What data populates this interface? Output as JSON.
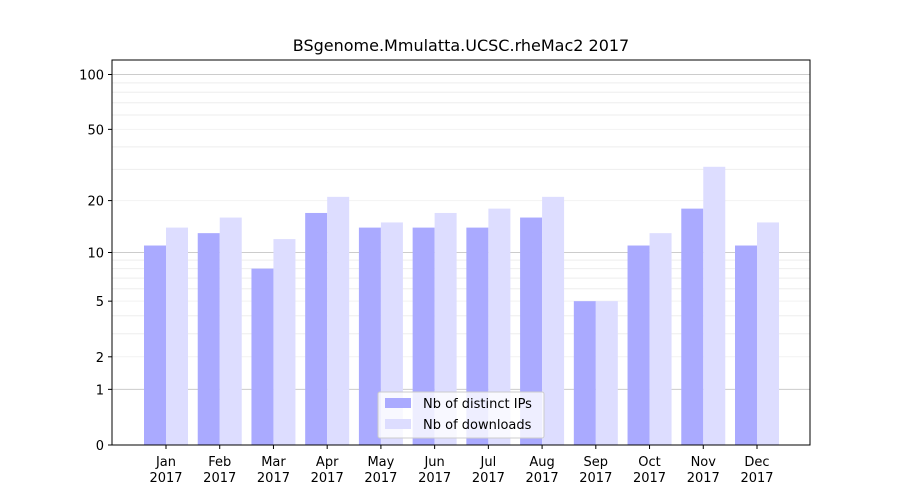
{
  "chart_data": {
    "type": "bar",
    "title": "BSgenome.Mmulatta.UCSC.rheMac2 2017",
    "xlabel": "",
    "ylabel": "",
    "yscale": "log(1+y)",
    "ylim": [
      0,
      120
    ],
    "yticks": [
      0,
      1,
      2,
      5,
      10,
      20,
      50,
      100
    ],
    "categories": [
      "Jan\n2017",
      "Feb\n2017",
      "Mar\n2017",
      "Apr\n2017",
      "May\n2017",
      "Jun\n2017",
      "Jul\n2017",
      "Aug\n2017",
      "Sep\n2017",
      "Oct\n2017",
      "Nov\n2017",
      "Dec\n2017"
    ],
    "series": [
      {
        "name": "Nb of distinct IPs",
        "color": "#aaaaff",
        "values": [
          11,
          13,
          8,
          17,
          14,
          14,
          14,
          16,
          5,
          11,
          18,
          11
        ]
      },
      {
        "name": "Nb of downloads",
        "color": "#ddddff",
        "values": [
          14,
          16,
          12,
          21,
          15,
          17,
          18,
          21,
          5,
          13,
          31,
          15
        ]
      }
    ],
    "grid": true,
    "legend": "bottom-center"
  }
}
